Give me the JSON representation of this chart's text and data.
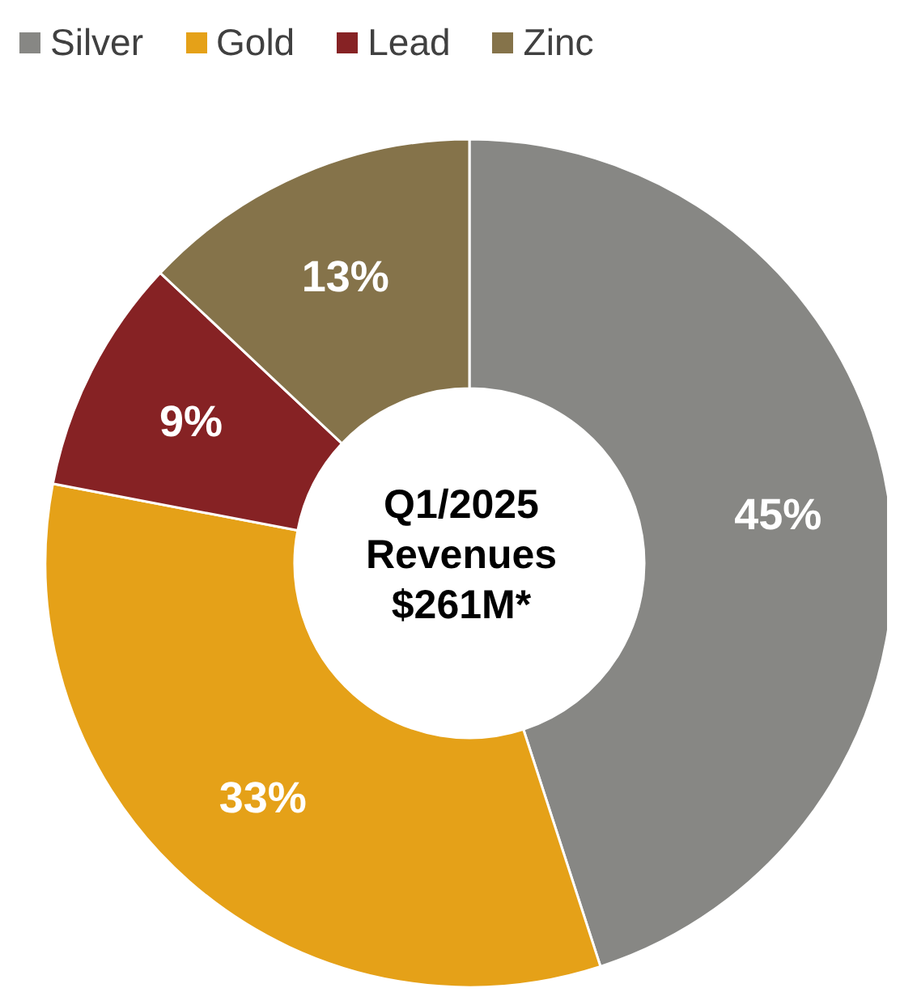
{
  "chart_data": {
    "type": "donut",
    "categories": [
      "Silver",
      "Gold",
      "Lead",
      "Zinc"
    ],
    "values": [
      45,
      33,
      9,
      13
    ],
    "colors": [
      "#878784",
      "#e5a118",
      "#862224",
      "#85734a"
    ],
    "annotations": [
      "Q1/2025",
      "Revenues",
      "$261M*"
    ],
    "value_labels": [
      "45%",
      "33%",
      "9%",
      "13%"
    ],
    "legend": "top"
  }
}
